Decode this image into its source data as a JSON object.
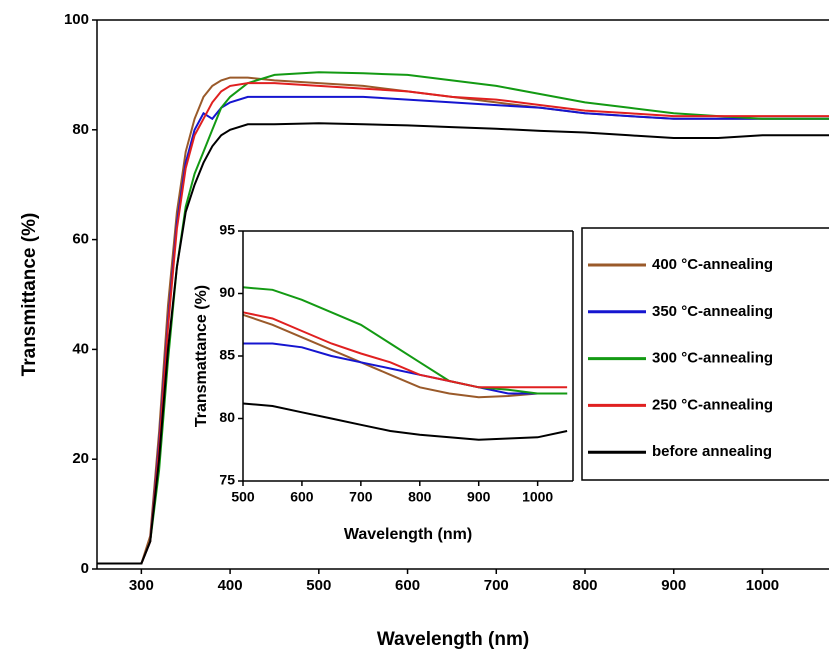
{
  "chart_data": [
    {
      "type": "line",
      "xlabel": "Wavelength (nm)",
      "ylabel": "Transmittance (%)",
      "x": [
        250,
        275,
        300,
        310,
        320,
        330,
        340,
        350,
        360,
        370,
        380,
        390,
        400,
        420,
        450,
        500,
        550,
        600,
        650,
        700,
        750,
        800,
        850,
        900,
        950,
        1000,
        1050,
        1075
      ],
      "series": [
        {
          "color": "#9a5a2a",
          "values": [
            1,
            1,
            1,
            6,
            25,
            48,
            65,
            76,
            82,
            86,
            88,
            89,
            89.5,
            89.5,
            89,
            88.5,
            88,
            87,
            86,
            85,
            84,
            83,
            82.5,
            82,
            82,
            82,
            82,
            82
          ]
        },
        {
          "color": "#1515d0",
          "values": [
            1,
            1,
            1,
            5,
            23,
            45,
            63,
            74,
            80,
            83,
            82,
            84,
            85,
            86,
            86,
            86,
            86,
            85.5,
            85,
            84.5,
            84,
            83,
            82.5,
            82,
            82,
            82,
            82,
            82
          ]
        },
        {
          "color": "#139a13",
          "values": [
            1,
            1,
            1,
            5,
            18,
            38,
            55,
            66,
            72,
            76,
            80,
            84,
            86,
            88.5,
            90,
            90.5,
            90.3,
            90,
            89,
            88,
            86.5,
            85,
            84,
            83,
            82.5,
            82,
            82,
            82
          ]
        },
        {
          "color": "#e02020",
          "values": [
            1,
            1,
            1,
            5,
            22,
            44,
            62,
            73,
            79,
            82,
            85,
            87,
            88,
            88.5,
            88.5,
            88,
            87.5,
            87,
            86,
            85.5,
            84.5,
            83.5,
            83,
            82.5,
            82.5,
            82.5,
            82.5,
            82.5
          ]
        },
        {
          "color": "#000000",
          "values": [
            1,
            1,
            1,
            5,
            20,
            40,
            55,
            65,
            70,
            74,
            77,
            79,
            80,
            81,
            81,
            81.2,
            81,
            80.8,
            80.5,
            80.2,
            79.8,
            79.5,
            79,
            78.5,
            78.5,
            79,
            79,
            79
          ]
        }
      ],
      "xlim": [
        250,
        1075
      ],
      "xticks": [
        300,
        400,
        500,
        600,
        700,
        800,
        900,
        1000
      ],
      "ylim": [
        0,
        100
      ],
      "yticks": [
        0,
        20,
        40,
        60,
        80,
        100
      ]
    },
    {
      "type": "line",
      "xlabel": "Wavelength (nm)",
      "ylabel": "Transmattance (%)",
      "x": [
        500,
        550,
        600,
        650,
        700,
        750,
        800,
        850,
        900,
        950,
        1000,
        1050
      ],
      "series": [
        {
          "name": "400 °C-annealing",
          "color": "#9a5a2a",
          "values": [
            88.3,
            87.5,
            86.5,
            85.5,
            84.5,
            83.5,
            82.5,
            82,
            81.7,
            81.8,
            82,
            82
          ]
        },
        {
          "name": "350 °C-annealing",
          "color": "#1515d0",
          "values": [
            86,
            86,
            85.7,
            85,
            84.5,
            84,
            83.5,
            83,
            82.5,
            82,
            82,
            82
          ]
        },
        {
          "name": "300 °C-annealing",
          "color": "#139a13",
          "values": [
            90.5,
            90.3,
            89.5,
            88.5,
            87.5,
            86,
            84.5,
            83,
            82.5,
            82.3,
            82,
            82
          ]
        },
        {
          "name": "250 °C-annealing",
          "color": "#e02020",
          "values": [
            88.5,
            88,
            87,
            86,
            85.2,
            84.5,
            83.5,
            83,
            82.5,
            82.5,
            82.5,
            82.5
          ]
        },
        {
          "name": "before annealing",
          "color": "#000000",
          "values": [
            81.2,
            81,
            80.5,
            80,
            79.5,
            79,
            78.7,
            78.5,
            78.3,
            78.4,
            78.5,
            79
          ]
        }
      ],
      "xlim": [
        500,
        1060
      ],
      "xticks": [
        500,
        600,
        700,
        800,
        900,
        1000
      ],
      "ylim": [
        75,
        95
      ],
      "yticks": [
        75,
        80,
        85,
        90,
        95
      ]
    }
  ]
}
